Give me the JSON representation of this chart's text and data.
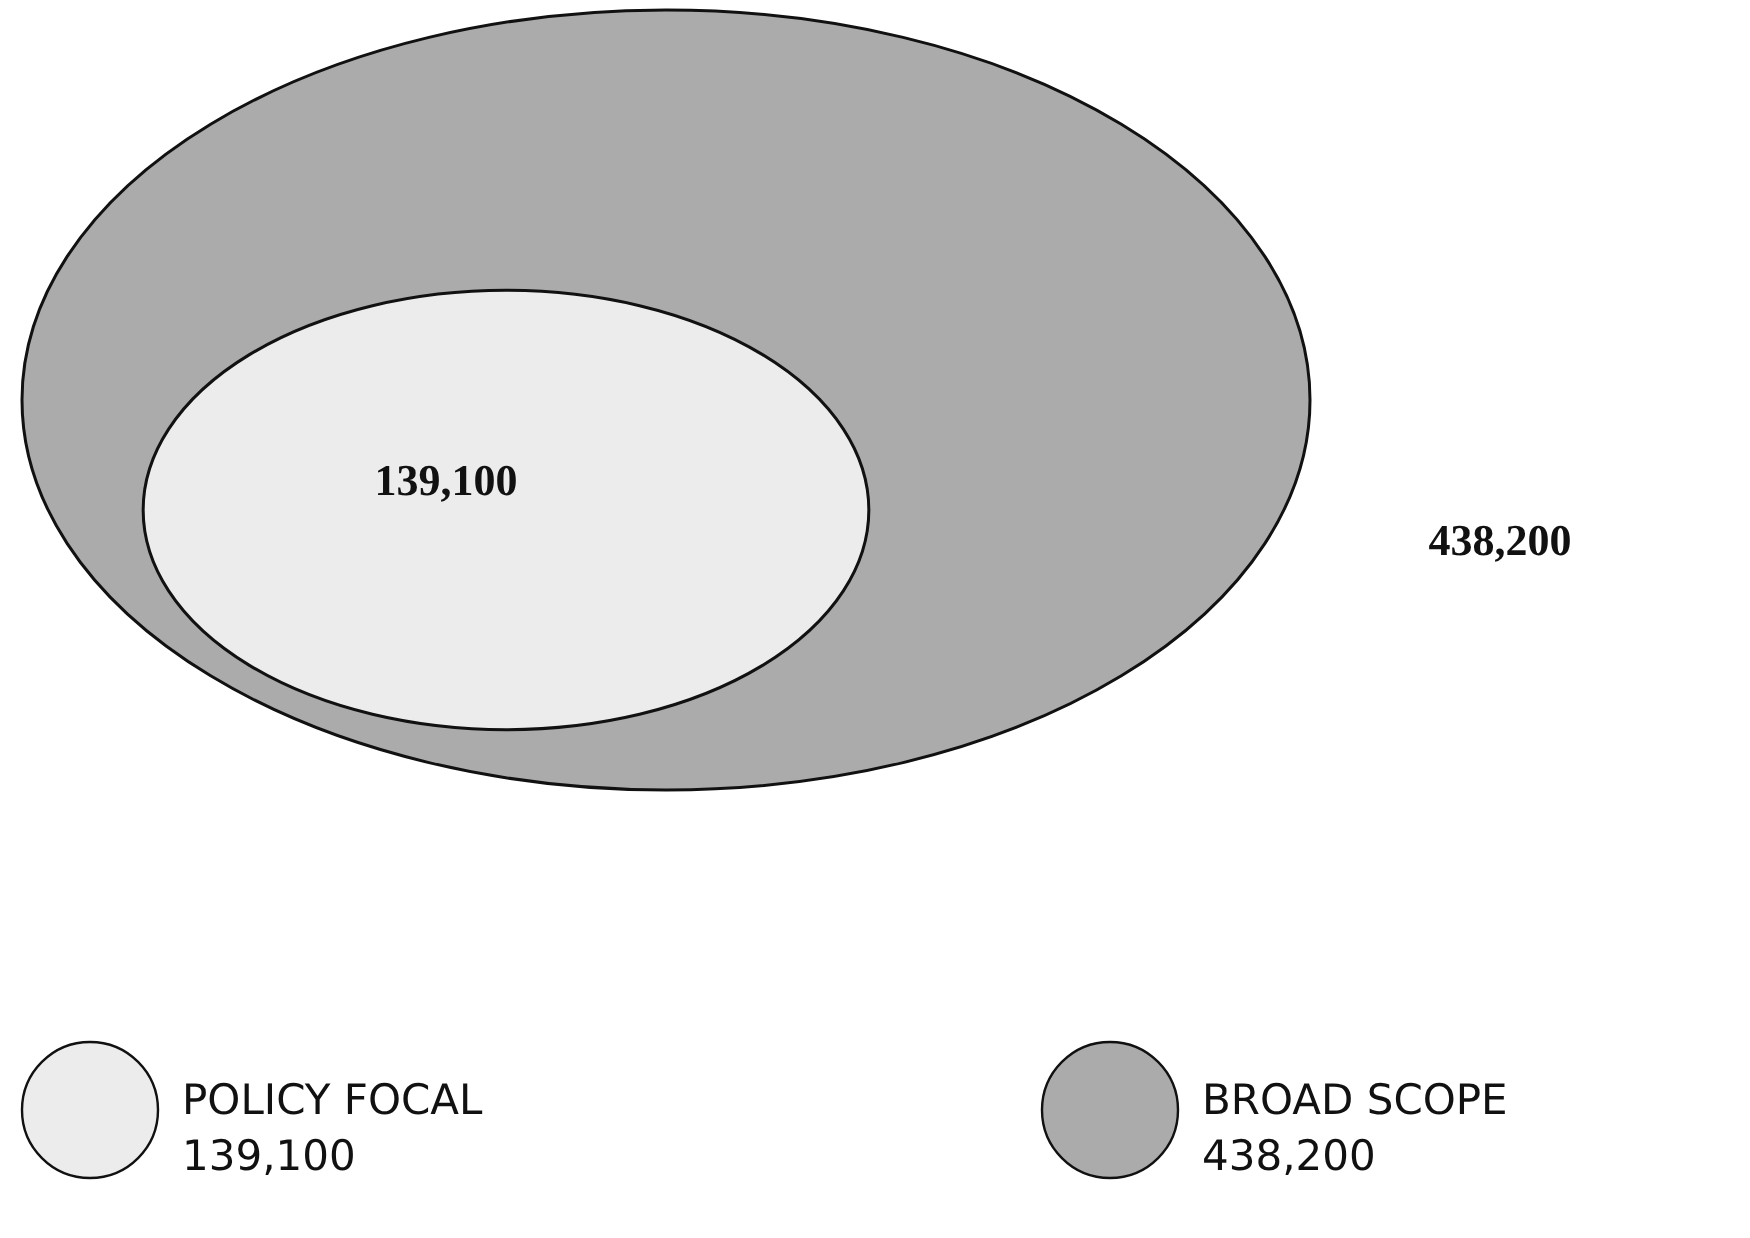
{
  "chart_data": {
    "type": "other",
    "categories": [
      "POLICY FOCAL",
      "BROAD SCOPE"
    ],
    "values": [
      139100,
      438200
    ],
    "value_labels": [
      "139,100",
      "438,200"
    ],
    "colors": [
      "#ececec",
      "#ababab"
    ]
  }
}
